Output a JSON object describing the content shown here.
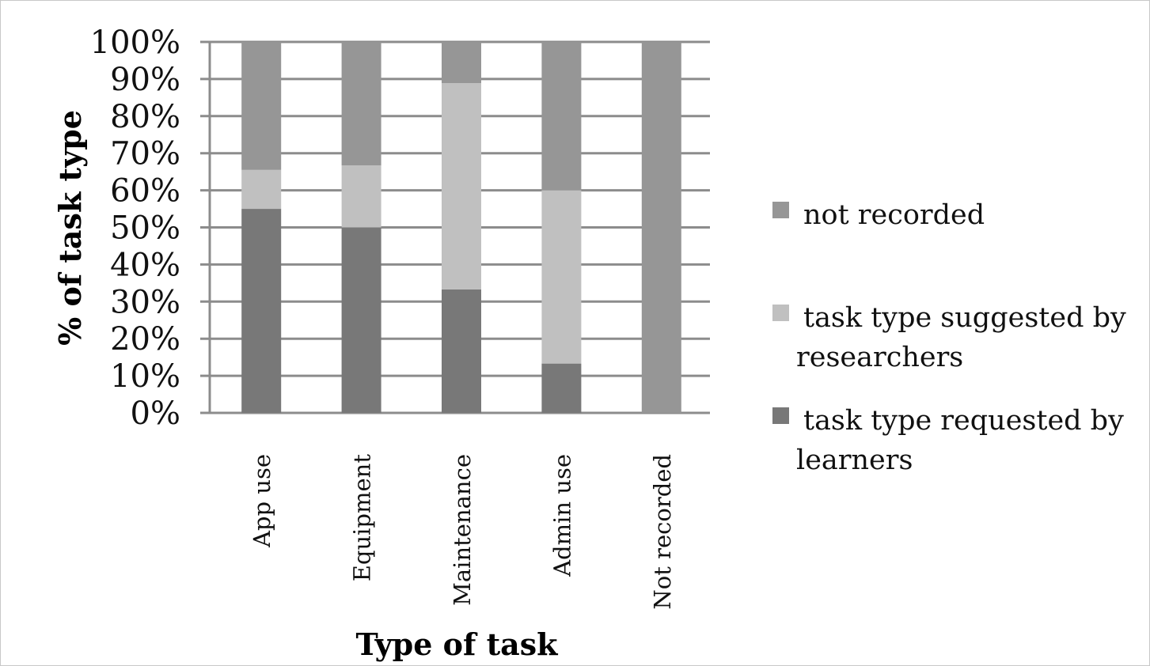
{
  "chart_data": {
    "type": "bar",
    "stacked": true,
    "percent_stacked": true,
    "categories": [
      "App use",
      "Equipment",
      "Maintenance",
      "Admin use",
      "Not recorded"
    ],
    "series": [
      {
        "name": "task type requested by learners",
        "color": "#787878",
        "values": [
          55,
          50,
          33.3,
          13.3,
          0
        ]
      },
      {
        "name": "task type suggested by researchers",
        "color": "#c0c0c0",
        "values": [
          10.5,
          16.7,
          55.6,
          46.7,
          0
        ]
      },
      {
        "name": "not recorded",
        "color": "#969696",
        "values": [
          34.5,
          33.3,
          11.1,
          40,
          100
        ]
      }
    ],
    "legend_order": [
      2,
      1,
      0
    ],
    "legend_lines": [
      [
        "not recorded"
      ],
      [
        "task type suggested by",
        "researchers"
      ],
      [
        "task type requested by",
        "learners"
      ]
    ],
    "xlabel": "Type of task",
    "ylabel": "% of task type",
    "ylim": [
      0,
      100
    ],
    "yticks": [
      "0%",
      "10%",
      "20%",
      "30%",
      "40%",
      "50%",
      "60%",
      "70%",
      "80%",
      "90%",
      "100%"
    ],
    "grid": true,
    "legend_position": "right"
  }
}
